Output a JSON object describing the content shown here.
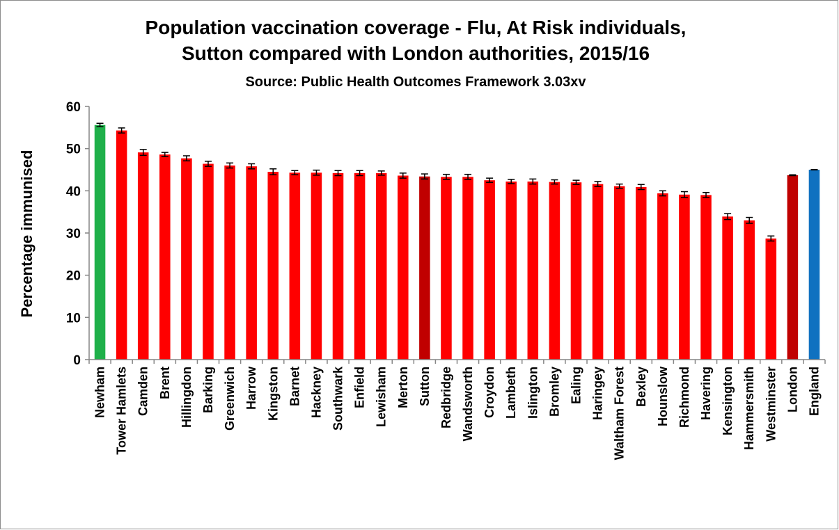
{
  "chart_data": {
    "type": "bar",
    "title": "Population vaccination coverage - Flu, At Risk individuals,",
    "title_line2": "Sutton compared with London authorities, 2015/16",
    "subtitle": "Source: Public Health Outcomes Framework 3.03xv",
    "ylabel": "Percentage immunised",
    "xlabel": "",
    "ylim": [
      0,
      60
    ],
    "yticks": [
      "0",
      "10",
      "20",
      "30",
      "40",
      "50",
      "60"
    ],
    "grid": false,
    "legend": "none",
    "categories": [
      "Newham",
      "Tower Hamlets",
      "Camden",
      "Brent",
      "Hillingdon",
      "Barking",
      "Greenwich",
      "Harrow",
      "Kingston",
      "Barnet",
      "Hackney",
      "Southwark",
      "Enfield",
      "Lewisham",
      "Merton",
      "Sutton",
      "Redbridge",
      "Wandsworth",
      "Croydon",
      "Lambeth",
      "Islington",
      "Bromley",
      "Ealing",
      "Haringey",
      "Waltham Forest",
      "Bexley",
      "Hounslow",
      "Richmond",
      "Havering",
      "Kensington",
      "Hammersmith",
      "Westminster",
      "London",
      "England"
    ],
    "values": [
      55.6,
      54.3,
      49.1,
      48.6,
      47.7,
      46.4,
      46.0,
      45.8,
      44.5,
      44.3,
      44.3,
      44.2,
      44.2,
      44.2,
      43.6,
      43.4,
      43.3,
      43.3,
      42.5,
      42.2,
      42.2,
      42.1,
      42.0,
      41.6,
      41.1,
      40.9,
      39.4,
      39.1,
      39.0,
      33.9,
      33.0,
      28.7,
      43.7,
      45.0
    ],
    "error_low": [
      55.2,
      53.7,
      48.4,
      48.1,
      47.1,
      45.8,
      45.4,
      45.2,
      43.8,
      43.8,
      43.7,
      43.6,
      43.6,
      43.7,
      43.0,
      42.8,
      42.7,
      42.7,
      42.0,
      41.7,
      41.6,
      41.6,
      41.5,
      41.0,
      40.6,
      40.3,
      38.8,
      38.4,
      38.4,
      33.2,
      32.3,
      28.1,
      43.6,
      44.95
    ],
    "error_high": [
      56.0,
      54.9,
      49.8,
      49.1,
      48.3,
      47.0,
      46.6,
      46.4,
      45.2,
      44.8,
      44.9,
      44.8,
      44.8,
      44.7,
      44.2,
      44.0,
      43.9,
      43.9,
      43.0,
      42.7,
      42.8,
      42.6,
      42.5,
      42.2,
      41.6,
      41.5,
      40.0,
      39.8,
      39.6,
      34.6,
      33.7,
      29.3,
      43.8,
      45.05
    ],
    "bar_colors": {
      "best": "#1fb04a",
      "default": "#ff0000",
      "highlight": "#c00000",
      "national": "#1071c0"
    },
    "bar_color_keys": [
      "best",
      "default",
      "default",
      "default",
      "default",
      "default",
      "default",
      "default",
      "default",
      "default",
      "default",
      "default",
      "default",
      "default",
      "default",
      "highlight",
      "default",
      "default",
      "default",
      "default",
      "default",
      "default",
      "default",
      "default",
      "default",
      "default",
      "default",
      "default",
      "default",
      "default",
      "default",
      "default",
      "highlight",
      "national"
    ]
  }
}
